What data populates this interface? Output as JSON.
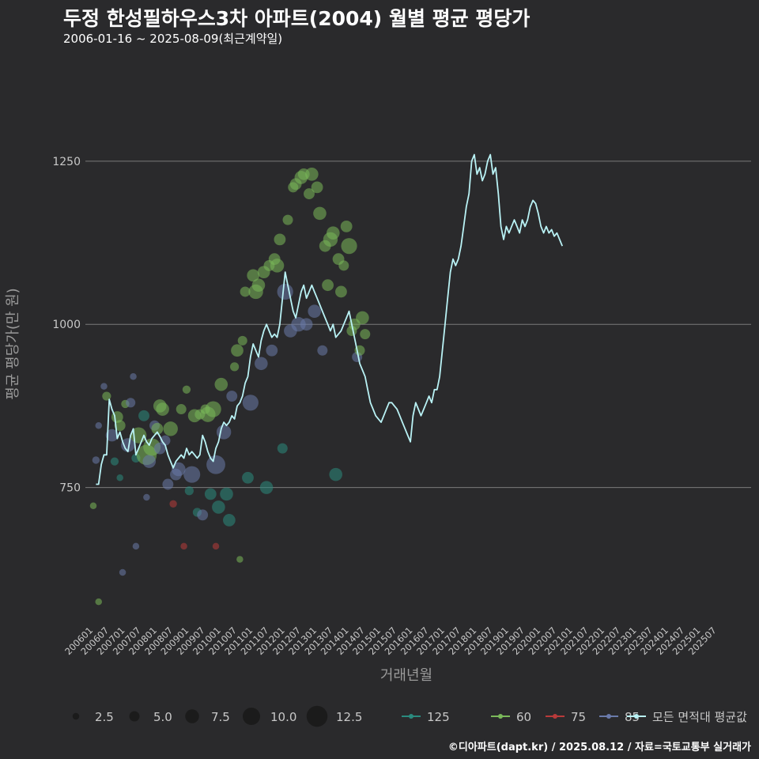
{
  "title": "두정 한성필하우스3차 아파트(2004) 월별 평균 평당가",
  "subtitle": "2006-01-16 ~ 2025-08-09(최근계약일)",
  "caption": "©디아파트(dapt.kr) / 2025.08.12 / 자료=국토교통부 실거래가",
  "colors": {
    "background": "#2a2a2c",
    "grid": "#7a7a7a",
    "text": "#c8c8c8",
    "s125": "#2a8a7e",
    "s60": "#7ab85a",
    "s75": "#b83a3a",
    "s85": "#6a7aaa",
    "avg": "#b9f2f5"
  },
  "chart_data": {
    "type": "line",
    "xlabel": "거래년월",
    "ylabel": "평균 평당가(만 원)",
    "ylim": [
      540,
      1400
    ],
    "yticks": [
      750,
      1000,
      1250
    ],
    "grid": true,
    "legend_position": "bottom",
    "size_legend": {
      "values": [
        2.5,
        5.0,
        7.5,
        10.0,
        12.5
      ],
      "labels": [
        "2.5",
        "5.0",
        "7.5",
        "10.0",
        "12.5"
      ]
    },
    "color_legend": [
      {
        "key": "s125",
        "label": "125"
      },
      {
        "key": "s60",
        "label": "60"
      },
      {
        "key": "s75",
        "label": "75"
      },
      {
        "key": "s85",
        "label": "85"
      },
      {
        "key": "avg",
        "label": "모든 면적대 평균값"
      }
    ],
    "xtick_labels": [
      "200601",
      "200607",
      "200701",
      "200707",
      "200801",
      "200807",
      "200901",
      "200907",
      "201001",
      "201007",
      "201101",
      "201107",
      "201201",
      "201207",
      "201301",
      "201307",
      "201401",
      "201407",
      "201501",
      "201507",
      "201601",
      "201607",
      "201701",
      "201707",
      "201801",
      "201807",
      "201901",
      "201907",
      "202001",
      "202007",
      "202101",
      "202107",
      "202201",
      "202207",
      "202301",
      "202307",
      "202401",
      "202407",
      "202501",
      "202507"
    ],
    "series": [
      {
        "name": "모든 면적대 평균값",
        "x_start": "2006-02",
        "monthly_values": [
          755,
          755,
          785,
          800,
          800,
          885,
          870,
          860,
          825,
          835,
          820,
          810,
          805,
          830,
          840,
          800,
          810,
          820,
          830,
          820,
          815,
          825,
          830,
          835,
          828,
          820,
          815,
          800,
          790,
          780,
          790,
          795,
          800,
          795,
          810,
          800,
          805,
          800,
          795,
          800,
          830,
          820,
          805,
          795,
          790,
          810,
          820,
          840,
          850,
          845,
          850,
          860,
          855,
          875,
          880,
          890,
          910,
          920,
          950,
          970,
          960,
          950,
          975,
          990,
          1000,
          990,
          980,
          985,
          980,
          1000,
          1040,
          1080,
          1060,
          1040,
          1020,
          1010,
          1030,
          1050,
          1060,
          1040,
          1050,
          1060,
          1050,
          1040,
          1030,
          1020,
          1010,
          1000,
          990,
          1000,
          980,
          985,
          990,
          1000,
          1010,
          1020,
          1000,
          980,
          960,
          940,
          930,
          920,
          900,
          880,
          870,
          860,
          855,
          850,
          860,
          870,
          880,
          880,
          875,
          870,
          860,
          850,
          840,
          830,
          820,
          860,
          880,
          870,
          860,
          870,
          880,
          890,
          880,
          900,
          900,
          920,
          960,
          1000,
          1040,
          1080,
          1100,
          1090,
          1100,
          1120,
          1150,
          1180,
          1200,
          1250,
          1260,
          1230,
          1240,
          1220,
          1230,
          1250,
          1260,
          1230,
          1240,
          1200,
          1150,
          1130,
          1150,
          1140,
          1150,
          1160,
          1150,
          1140,
          1160,
          1150,
          1160,
          1180,
          1190,
          1185,
          1170,
          1150,
          1140,
          1150,
          1140,
          1145,
          1135,
          1140,
          1130,
          1120
        ]
      }
    ],
    "scatter": [
      {
        "x": "2006-01",
        "y": 722,
        "s": 2.5,
        "c": "s60"
      },
      {
        "x": "2006-02",
        "y": 792,
        "s": 3.0,
        "c": "s85"
      },
      {
        "x": "2006-03",
        "y": 575,
        "s": 2.5,
        "c": "s60"
      },
      {
        "x": "2006-03",
        "y": 845,
        "s": 2.5,
        "c": "s85"
      },
      {
        "x": "2006-05",
        "y": 905,
        "s": 2.5,
        "c": "s85"
      },
      {
        "x": "2006-06",
        "y": 890,
        "s": 4.0,
        "c": "s60"
      },
      {
        "x": "2006-08",
        "y": 830,
        "s": 6.5,
        "c": "s85"
      },
      {
        "x": "2006-09",
        "y": 790,
        "s": 3.5,
        "c": "s125"
      },
      {
        "x": "2006-10",
        "y": 858,
        "s": 6.0,
        "c": "s60"
      },
      {
        "x": "2006-11",
        "y": 845,
        "s": 5.5,
        "c": "s60"
      },
      {
        "x": "2006-11",
        "y": 765,
        "s": 2.5,
        "c": "s125"
      },
      {
        "x": "2006-12",
        "y": 620,
        "s": 2.5,
        "c": "s85"
      },
      {
        "x": "2007-01",
        "y": 878,
        "s": 3.5,
        "c": "s60"
      },
      {
        "x": "2007-02",
        "y": 815,
        "s": 7.5,
        "c": "s85"
      },
      {
        "x": "2007-03",
        "y": 880,
        "s": 4.5,
        "c": "s85"
      },
      {
        "x": "2007-04",
        "y": 920,
        "s": 2.5,
        "c": "s85"
      },
      {
        "x": "2007-05",
        "y": 660,
        "s": 2.5,
        "c": "s85"
      },
      {
        "x": "2007-05",
        "y": 795,
        "s": 4.0,
        "c": "s125"
      },
      {
        "x": "2007-06",
        "y": 830,
        "s": 9.0,
        "c": "s60"
      },
      {
        "x": "2007-08",
        "y": 860,
        "s": 5.5,
        "c": "s125"
      },
      {
        "x": "2007-09",
        "y": 800,
        "s": 12.0,
        "c": "s60"
      },
      {
        "x": "2007-09",
        "y": 735,
        "s": 2.5,
        "c": "s85"
      },
      {
        "x": "2007-10",
        "y": 790,
        "s": 7.0,
        "c": "s85"
      },
      {
        "x": "2007-11",
        "y": 812,
        "s": 10.0,
        "c": "s60"
      },
      {
        "x": "2007-12",
        "y": 845,
        "s": 5.0,
        "c": "s85"
      },
      {
        "x": "2008-01",
        "y": 840,
        "s": 6.0,
        "c": "s60"
      },
      {
        "x": "2008-02",
        "y": 875,
        "s": 7.0,
        "c": "s60"
      },
      {
        "x": "2008-02",
        "y": 810,
        "s": 6.0,
        "c": "s85"
      },
      {
        "x": "2008-03",
        "y": 870,
        "s": 7.0,
        "c": "s60"
      },
      {
        "x": "2008-04",
        "y": 822,
        "s": 5.0,
        "c": "s85"
      },
      {
        "x": "2008-05",
        "y": 755,
        "s": 5.5,
        "c": "s85"
      },
      {
        "x": "2008-06",
        "y": 840,
        "s": 8.0,
        "c": "s60"
      },
      {
        "x": "2008-07",
        "y": 725,
        "s": 3.0,
        "c": "s75"
      },
      {
        "x": "2008-08",
        "y": 770,
        "s": 6.0,
        "c": "s85"
      },
      {
        "x": "2008-09",
        "y": 778,
        "s": 7.5,
        "c": "s85"
      },
      {
        "x": "2008-10",
        "y": 870,
        "s": 5.0,
        "c": "s60"
      },
      {
        "x": "2008-11",
        "y": 660,
        "s": 2.5,
        "c": "s75"
      },
      {
        "x": "2008-12",
        "y": 900,
        "s": 3.5,
        "c": "s60"
      },
      {
        "x": "2009-01",
        "y": 745,
        "s": 4.0,
        "c": "s125"
      },
      {
        "x": "2009-02",
        "y": 770,
        "s": 9.5,
        "c": "s85"
      },
      {
        "x": "2009-03",
        "y": 860,
        "s": 7.0,
        "c": "s60"
      },
      {
        "x": "2009-04",
        "y": 712,
        "s": 4.0,
        "c": "s125"
      },
      {
        "x": "2009-05",
        "y": 862,
        "s": 5.0,
        "c": "s60"
      },
      {
        "x": "2009-06",
        "y": 708,
        "s": 5.5,
        "c": "s85"
      },
      {
        "x": "2009-07",
        "y": 870,
        "s": 4.5,
        "c": "s60"
      },
      {
        "x": "2009-08",
        "y": 862,
        "s": 8.5,
        "c": "s60"
      },
      {
        "x": "2009-09",
        "y": 740,
        "s": 6.0,
        "c": "s125"
      },
      {
        "x": "2009-10",
        "y": 870,
        "s": 9.0,
        "c": "s60"
      },
      {
        "x": "2009-11",
        "y": 660,
        "s": 2.5,
        "c": "s75"
      },
      {
        "x": "2009-11",
        "y": 785,
        "s": 11.0,
        "c": "s85"
      },
      {
        "x": "2009-12",
        "y": 720,
        "s": 7.0,
        "c": "s125"
      },
      {
        "x": "2010-01",
        "y": 908,
        "s": 7.0,
        "c": "s60"
      },
      {
        "x": "2010-02",
        "y": 835,
        "s": 8.0,
        "c": "s85"
      },
      {
        "x": "2010-03",
        "y": 740,
        "s": 7.0,
        "c": "s125"
      },
      {
        "x": "2010-04",
        "y": 700,
        "s": 6.5,
        "c": "s125"
      },
      {
        "x": "2010-05",
        "y": 890,
        "s": 5.5,
        "c": "s85"
      },
      {
        "x": "2010-06",
        "y": 935,
        "s": 4.0,
        "c": "s60"
      },
      {
        "x": "2010-07",
        "y": 960,
        "s": 6.5,
        "c": "s60"
      },
      {
        "x": "2010-08",
        "y": 640,
        "s": 2.5,
        "c": "s60"
      },
      {
        "x": "2010-09",
        "y": 975,
        "s": 4.5,
        "c": "s60"
      },
      {
        "x": "2010-10",
        "y": 1050,
        "s": 5.0,
        "c": "s60"
      },
      {
        "x": "2010-11",
        "y": 765,
        "s": 6.0,
        "c": "s125"
      },
      {
        "x": "2010-12",
        "y": 880,
        "s": 9.0,
        "c": "s85"
      },
      {
        "x": "2011-01",
        "y": 1075,
        "s": 6.5,
        "c": "s60"
      },
      {
        "x": "2011-02",
        "y": 1050,
        "s": 8.0,
        "c": "s60"
      },
      {
        "x": "2011-03",
        "y": 1060,
        "s": 7.0,
        "c": "s60"
      },
      {
        "x": "2011-04",
        "y": 940,
        "s": 7.0,
        "c": "s85"
      },
      {
        "x": "2011-05",
        "y": 1080,
        "s": 6.5,
        "c": "s60"
      },
      {
        "x": "2011-06",
        "y": 750,
        "s": 7.0,
        "c": "s125"
      },
      {
        "x": "2011-07",
        "y": 1090,
        "s": 5.5,
        "c": "s60"
      },
      {
        "x": "2011-08",
        "y": 960,
        "s": 6.0,
        "c": "s85"
      },
      {
        "x": "2011-09",
        "y": 1100,
        "s": 6.0,
        "c": "s60"
      },
      {
        "x": "2011-10",
        "y": 1090,
        "s": 7.5,
        "c": "s60"
      },
      {
        "x": "2011-11",
        "y": 1130,
        "s": 6.0,
        "c": "s60"
      },
      {
        "x": "2011-12",
        "y": 810,
        "s": 5.0,
        "c": "s125"
      },
      {
        "x": "2012-01",
        "y": 1050,
        "s": 9.0,
        "c": "s85"
      },
      {
        "x": "2012-02",
        "y": 1160,
        "s": 5.0,
        "c": "s60"
      },
      {
        "x": "2012-03",
        "y": 990,
        "s": 7.0,
        "c": "s85"
      },
      {
        "x": "2012-04",
        "y": 1210,
        "s": 5.0,
        "c": "s60"
      },
      {
        "x": "2012-05",
        "y": 1215,
        "s": 6.0,
        "c": "s60"
      },
      {
        "x": "2012-06",
        "y": 1000,
        "s": 8.0,
        "c": "s85"
      },
      {
        "x": "2012-07",
        "y": 1225,
        "s": 7.0,
        "c": "s60"
      },
      {
        "x": "2012-08",
        "y": 1230,
        "s": 6.0,
        "c": "s60"
      },
      {
        "x": "2012-09",
        "y": 1000,
        "s": 6.5,
        "c": "s85"
      },
      {
        "x": "2012-10",
        "y": 1200,
        "s": 5.5,
        "c": "s60"
      },
      {
        "x": "2012-11",
        "y": 1230,
        "s": 7.0,
        "c": "s60"
      },
      {
        "x": "2012-12",
        "y": 1020,
        "s": 7.0,
        "c": "s85"
      },
      {
        "x": "2013-01",
        "y": 1210,
        "s": 6.0,
        "c": "s60"
      },
      {
        "x": "2013-02",
        "y": 1170,
        "s": 7.0,
        "c": "s60"
      },
      {
        "x": "2013-03",
        "y": 960,
        "s": 5.0,
        "c": "s85"
      },
      {
        "x": "2013-04",
        "y": 1120,
        "s": 6.0,
        "c": "s60"
      },
      {
        "x": "2013-05",
        "y": 1060,
        "s": 6.0,
        "c": "s60"
      },
      {
        "x": "2013-06",
        "y": 1130,
        "s": 8.0,
        "c": "s60"
      },
      {
        "x": "2013-07",
        "y": 1140,
        "s": 7.0,
        "c": "s60"
      },
      {
        "x": "2013-08",
        "y": 770,
        "s": 7.0,
        "c": "s125"
      },
      {
        "x": "2013-09",
        "y": 1100,
        "s": 6.0,
        "c": "s60"
      },
      {
        "x": "2013-10",
        "y": 1050,
        "s": 6.0,
        "c": "s60"
      },
      {
        "x": "2013-11",
        "y": 1090,
        "s": 5.0,
        "c": "s60"
      },
      {
        "x": "2013-12",
        "y": 1150,
        "s": 6.0,
        "c": "s60"
      },
      {
        "x": "2014-01",
        "y": 1120,
        "s": 9.0,
        "c": "s60"
      },
      {
        "x": "2014-02",
        "y": 990,
        "s": 5.0,
        "c": "s60"
      },
      {
        "x": "2014-03",
        "y": 1000,
        "s": 6.0,
        "c": "s60"
      },
      {
        "x": "2014-04",
        "y": 950,
        "s": 5.0,
        "c": "s85"
      },
      {
        "x": "2014-05",
        "y": 960,
        "s": 5.0,
        "c": "s60"
      },
      {
        "x": "2014-06",
        "y": 1010,
        "s": 7.0,
        "c": "s60"
      },
      {
        "x": "2014-07",
        "y": 985,
        "s": 5.0,
        "c": "s60"
      }
    ]
  }
}
